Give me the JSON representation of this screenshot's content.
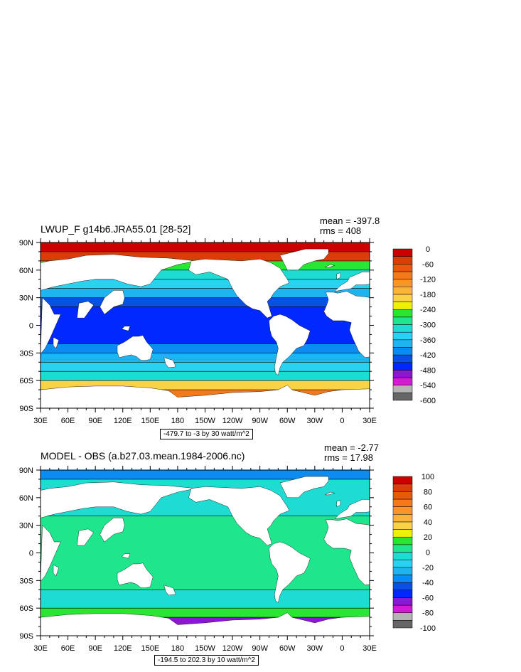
{
  "colors": {
    "land": "#ffffff",
    "coast": "#000000",
    "top_palette": [
      "#666666",
      "#b4b4b4",
      "#d41bd4",
      "#8a16d6",
      "#0028ff",
      "#0a50e6",
      "#0a8cf0",
      "#1eb4f0",
      "#28d2f0",
      "#1edcd2",
      "#1ee68c",
      "#28e632",
      "#eef00a",
      "#fad246",
      "#fab43c",
      "#fa9628",
      "#f57819",
      "#e65a0a",
      "#dc3c0a",
      "#cc0000"
    ],
    "bottom_palette": [
      "#666666",
      "#b4b4b4",
      "#d41bd4",
      "#8a16d6",
      "#0028ff",
      "#0a50e6",
      "#0a8cf0",
      "#1eb4f0",
      "#28d2f0",
      "#1edcd2",
      "#1ee68c",
      "#28e632",
      "#eef00a",
      "#fad246",
      "#fab43c",
      "#fa9628",
      "#f57819",
      "#e65a0a",
      "#dc3c0a",
      "#cc0000"
    ]
  },
  "chart_data": [
    {
      "type": "heatmap",
      "title": "LWUP_F g14b6.JRA55.01 [28-52]",
      "mean_label": "mean = -397.8",
      "rms_label": "rms = 408",
      "range_label": "-479.7 to -3 by 30 watt/m^2",
      "x_ticks": [
        "30E",
        "60E",
        "90E",
        "120E",
        "150E",
        "180",
        "150W",
        "120W",
        "90W",
        "60W",
        "30W",
        "0",
        "30E"
      ],
      "y_ticks": [
        "90N",
        "60N",
        "30N",
        "0",
        "30S",
        "60S",
        "90S"
      ],
      "xlim": [
        30,
        390
      ],
      "ylim": [
        -90,
        90
      ],
      "colorbar_labels": [
        "0",
        "-60",
        "-120",
        "-180",
        "-240",
        "-300",
        "-360",
        "-420",
        "-480",
        "-540",
        "-600"
      ],
      "colorbar_range": [
        -600,
        0
      ],
      "zonal_profile": {
        "lat": [
          85,
          75,
          65,
          55,
          45,
          35,
          25,
          15,
          5,
          -5,
          -15,
          -25,
          -35,
          -45,
          -55,
          -65,
          -75
        ],
        "value": [
          -5,
          -40,
          -270,
          -330,
          -360,
          -390,
          -430,
          -460,
          -470,
          -470,
          -455,
          -420,
          -390,
          -360,
          -320,
          -200,
          -100
        ]
      }
    },
    {
      "type": "heatmap",
      "title": "MODEL - OBS (a.b27.03.mean.1984-2006.nc)",
      "mean_label": "mean = -2.77",
      "rms_label": "rms = 17.98",
      "range_label": "-194.5 to 202.3 by 10 watt/m^2",
      "x_ticks": [
        "30E",
        "60E",
        "90E",
        "120E",
        "150E",
        "180",
        "150W",
        "120W",
        "90W",
        "60W",
        "30W",
        "0",
        "30E"
      ],
      "y_ticks": [
        "90N",
        "60N",
        "30N",
        "0",
        "30S",
        "60S",
        "90S"
      ],
      "xlim": [
        30,
        390
      ],
      "ylim": [
        -90,
        90
      ],
      "colorbar_labels": [
        "100",
        "80",
        "60",
        "40",
        "20",
        "0",
        "-20",
        "-40",
        "-60",
        "-80",
        "-100"
      ],
      "colorbar_range": [
        -100,
        100
      ],
      "zonal_profile": {
        "lat": [
          85,
          75,
          65,
          55,
          45,
          35,
          25,
          15,
          5,
          -5,
          -15,
          -25,
          -35,
          -45,
          -55,
          -65,
          -75
        ],
        "value": [
          -40,
          -10,
          -5,
          -10,
          -5,
          0,
          2,
          5,
          3,
          2,
          3,
          5,
          0,
          -5,
          -10,
          10,
          -70
        ]
      }
    }
  ]
}
